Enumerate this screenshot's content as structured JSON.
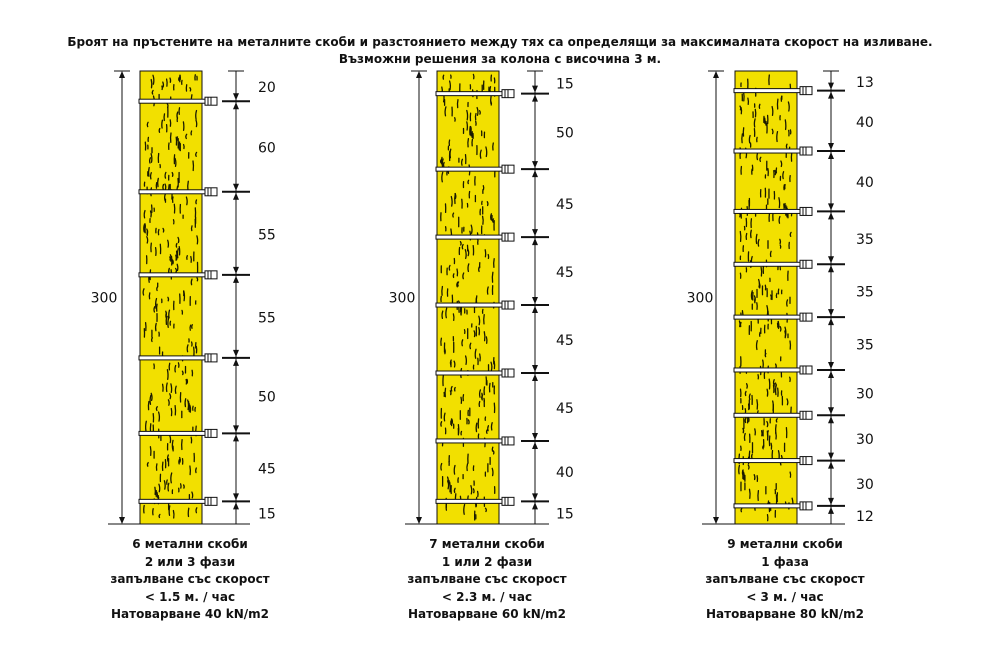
{
  "title": {
    "line1": "Броят на пръстените на металните скоби и разстоянието между тях са определящи за максималната скорост на изливане.",
    "line2": "Възможни решения за колона с височина 3 м."
  },
  "colors": {
    "wood": "#f2e000",
    "grain": "#1a1a00",
    "line": "#111111"
  },
  "columns": [
    {
      "total_height": "300",
      "segments": [
        20,
        60,
        55,
        55,
        50,
        45,
        15
      ],
      "segment_labels": [
        "20",
        "60",
        "55",
        "55",
        "50",
        "45",
        "15"
      ],
      "clamp_count": 6,
      "caption": [
        "6 метални скоби",
        "2 или 3 фази",
        "запълване със скорост",
        "< 1.5 м. / час",
        "Натоварване 40 kN/m2"
      ]
    },
    {
      "total_height": "300",
      "segments": [
        15,
        50,
        45,
        45,
        45,
        45,
        40,
        15
      ],
      "segment_labels": [
        "15",
        "50",
        "45",
        "45",
        "45",
        "45",
        "40",
        "15"
      ],
      "clamp_count": 7,
      "caption": [
        "7 метални скоби",
        "1 или 2 фази",
        "запълване със скорост",
        "< 2.3 м. / час",
        "Натоварване 60 kN/m2"
      ]
    },
    {
      "total_height": "300",
      "segments": [
        13,
        40,
        40,
        35,
        35,
        35,
        30,
        30,
        30,
        12
      ],
      "segment_labels": [
        "13",
        "40",
        "40",
        "35",
        "35",
        "35",
        "30",
        "30",
        "30",
        "12"
      ],
      "clamp_count": 9,
      "caption": [
        "9 метални скоби",
        "1 фаза",
        "запълване със скорост",
        "< 3 м. / час",
        "Натоварване 80 kN/m2"
      ]
    }
  ]
}
